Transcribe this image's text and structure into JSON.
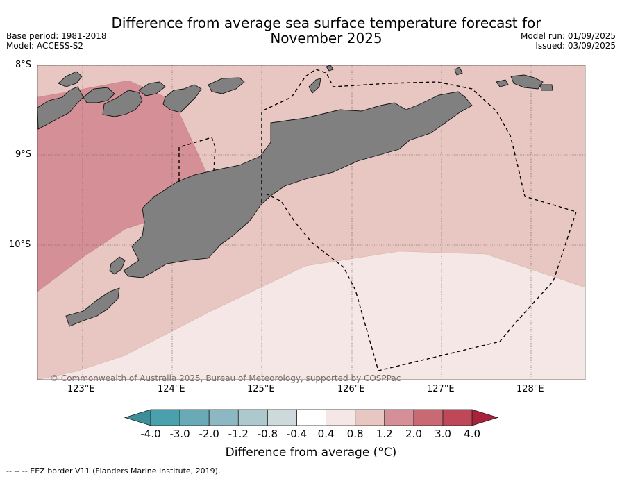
{
  "header": {
    "title_line1": "Difference from average sea surface temperature forecast for",
    "title_line2": "November 2025",
    "base_period": "Base period: 1981-2018",
    "model": "Model: ACCESS-S2",
    "model_run": "Model run: 01/09/2025",
    "issued": "Issued: 03/09/2025"
  },
  "map": {
    "lat_labels": [
      "8°S",
      "9°S",
      "10°S"
    ],
    "lon_labels": [
      "123°E",
      "124°E",
      "125°E",
      "126°E",
      "127°E",
      "128°E"
    ],
    "copyright": "© Commonwealth of Australia 2025, Bureau of Meteorology, supported by COSPPac",
    "land_color": "#808080",
    "anomaly_bands": {
      "0.4_to_0.8": "#f5e7e5",
      "0.8_to_1.2": "#e8c6c1",
      "1.2_to_2.0": "#d59097"
    }
  },
  "colorbar": {
    "title": "Difference from average (°C)",
    "labels": [
      "-4.0",
      "-3.0",
      "-2.0",
      "-1.2",
      "-0.8",
      "-0.4",
      "0.4",
      "0.8",
      "1.2",
      "2.0",
      "3.0",
      "4.0"
    ],
    "colors": [
      "#3e8e9a",
      "#4aa0ad",
      "#6aaab6",
      "#8bb8c2",
      "#aec9cd",
      "#cdd9db",
      "#ffffff",
      "#f5e7e5",
      "#e8c6c1",
      "#d59097",
      "#c96973",
      "#be4858",
      "#a8223a"
    ]
  },
  "legend": {
    "eez_note": "--  --  -- EEZ border V11 (Flanders Marine Institute, 2019)."
  }
}
